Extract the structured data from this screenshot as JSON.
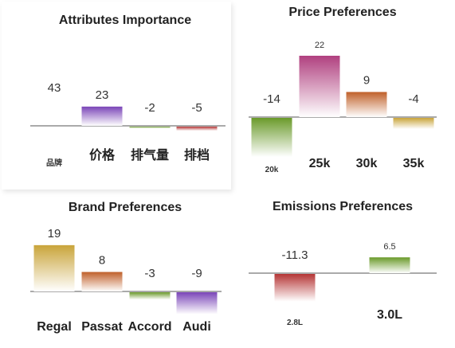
{
  "colors": {
    "purple": "#7a45b8",
    "magenta": "#b0407f",
    "orange": "#c0602a",
    "red": "#b53535",
    "green": "#6a9a2a",
    "gold": "#c9a43a",
    "axis": "#555555"
  },
  "chart_data": [
    {
      "id": "attributes",
      "type": "bar",
      "title": "Attributes Importance",
      "categories": [
        "品牌",
        "价格",
        "排气量",
        "排档"
      ],
      "values": [
        43,
        23,
        -2,
        -5
      ],
      "colors": [
        "none",
        "purple",
        "green",
        "red"
      ],
      "ylim": [
        -5,
        43
      ],
      "grid": false
    },
    {
      "id": "price",
      "type": "bar",
      "title": "Price Preferences",
      "categories": [
        "20k",
        "25k",
        "30k",
        "35k"
      ],
      "values": [
        -14,
        22,
        9,
        -4
      ],
      "colors": [
        "green",
        "magenta",
        "orange",
        "gold"
      ],
      "ylim": [
        -14,
        22
      ],
      "grid": false
    },
    {
      "id": "brand",
      "type": "bar",
      "title": "Brand Preferences",
      "categories": [
        "Regal",
        "Passat",
        "Accord",
        "Audi"
      ],
      "values": [
        19,
        8,
        -3,
        -9
      ],
      "colors": [
        "gold",
        "orange",
        "green",
        "purple"
      ],
      "ylim": [
        -9,
        19
      ],
      "grid": false
    },
    {
      "id": "emissions",
      "type": "bar",
      "title": "Emissions Preferences",
      "categories": [
        "2.8L",
        "3.0L"
      ],
      "values": [
        -11.3,
        6.5
      ],
      "colors": [
        "red",
        "green"
      ],
      "ylim": [
        -11.3,
        6.5
      ],
      "grid": false
    }
  ]
}
